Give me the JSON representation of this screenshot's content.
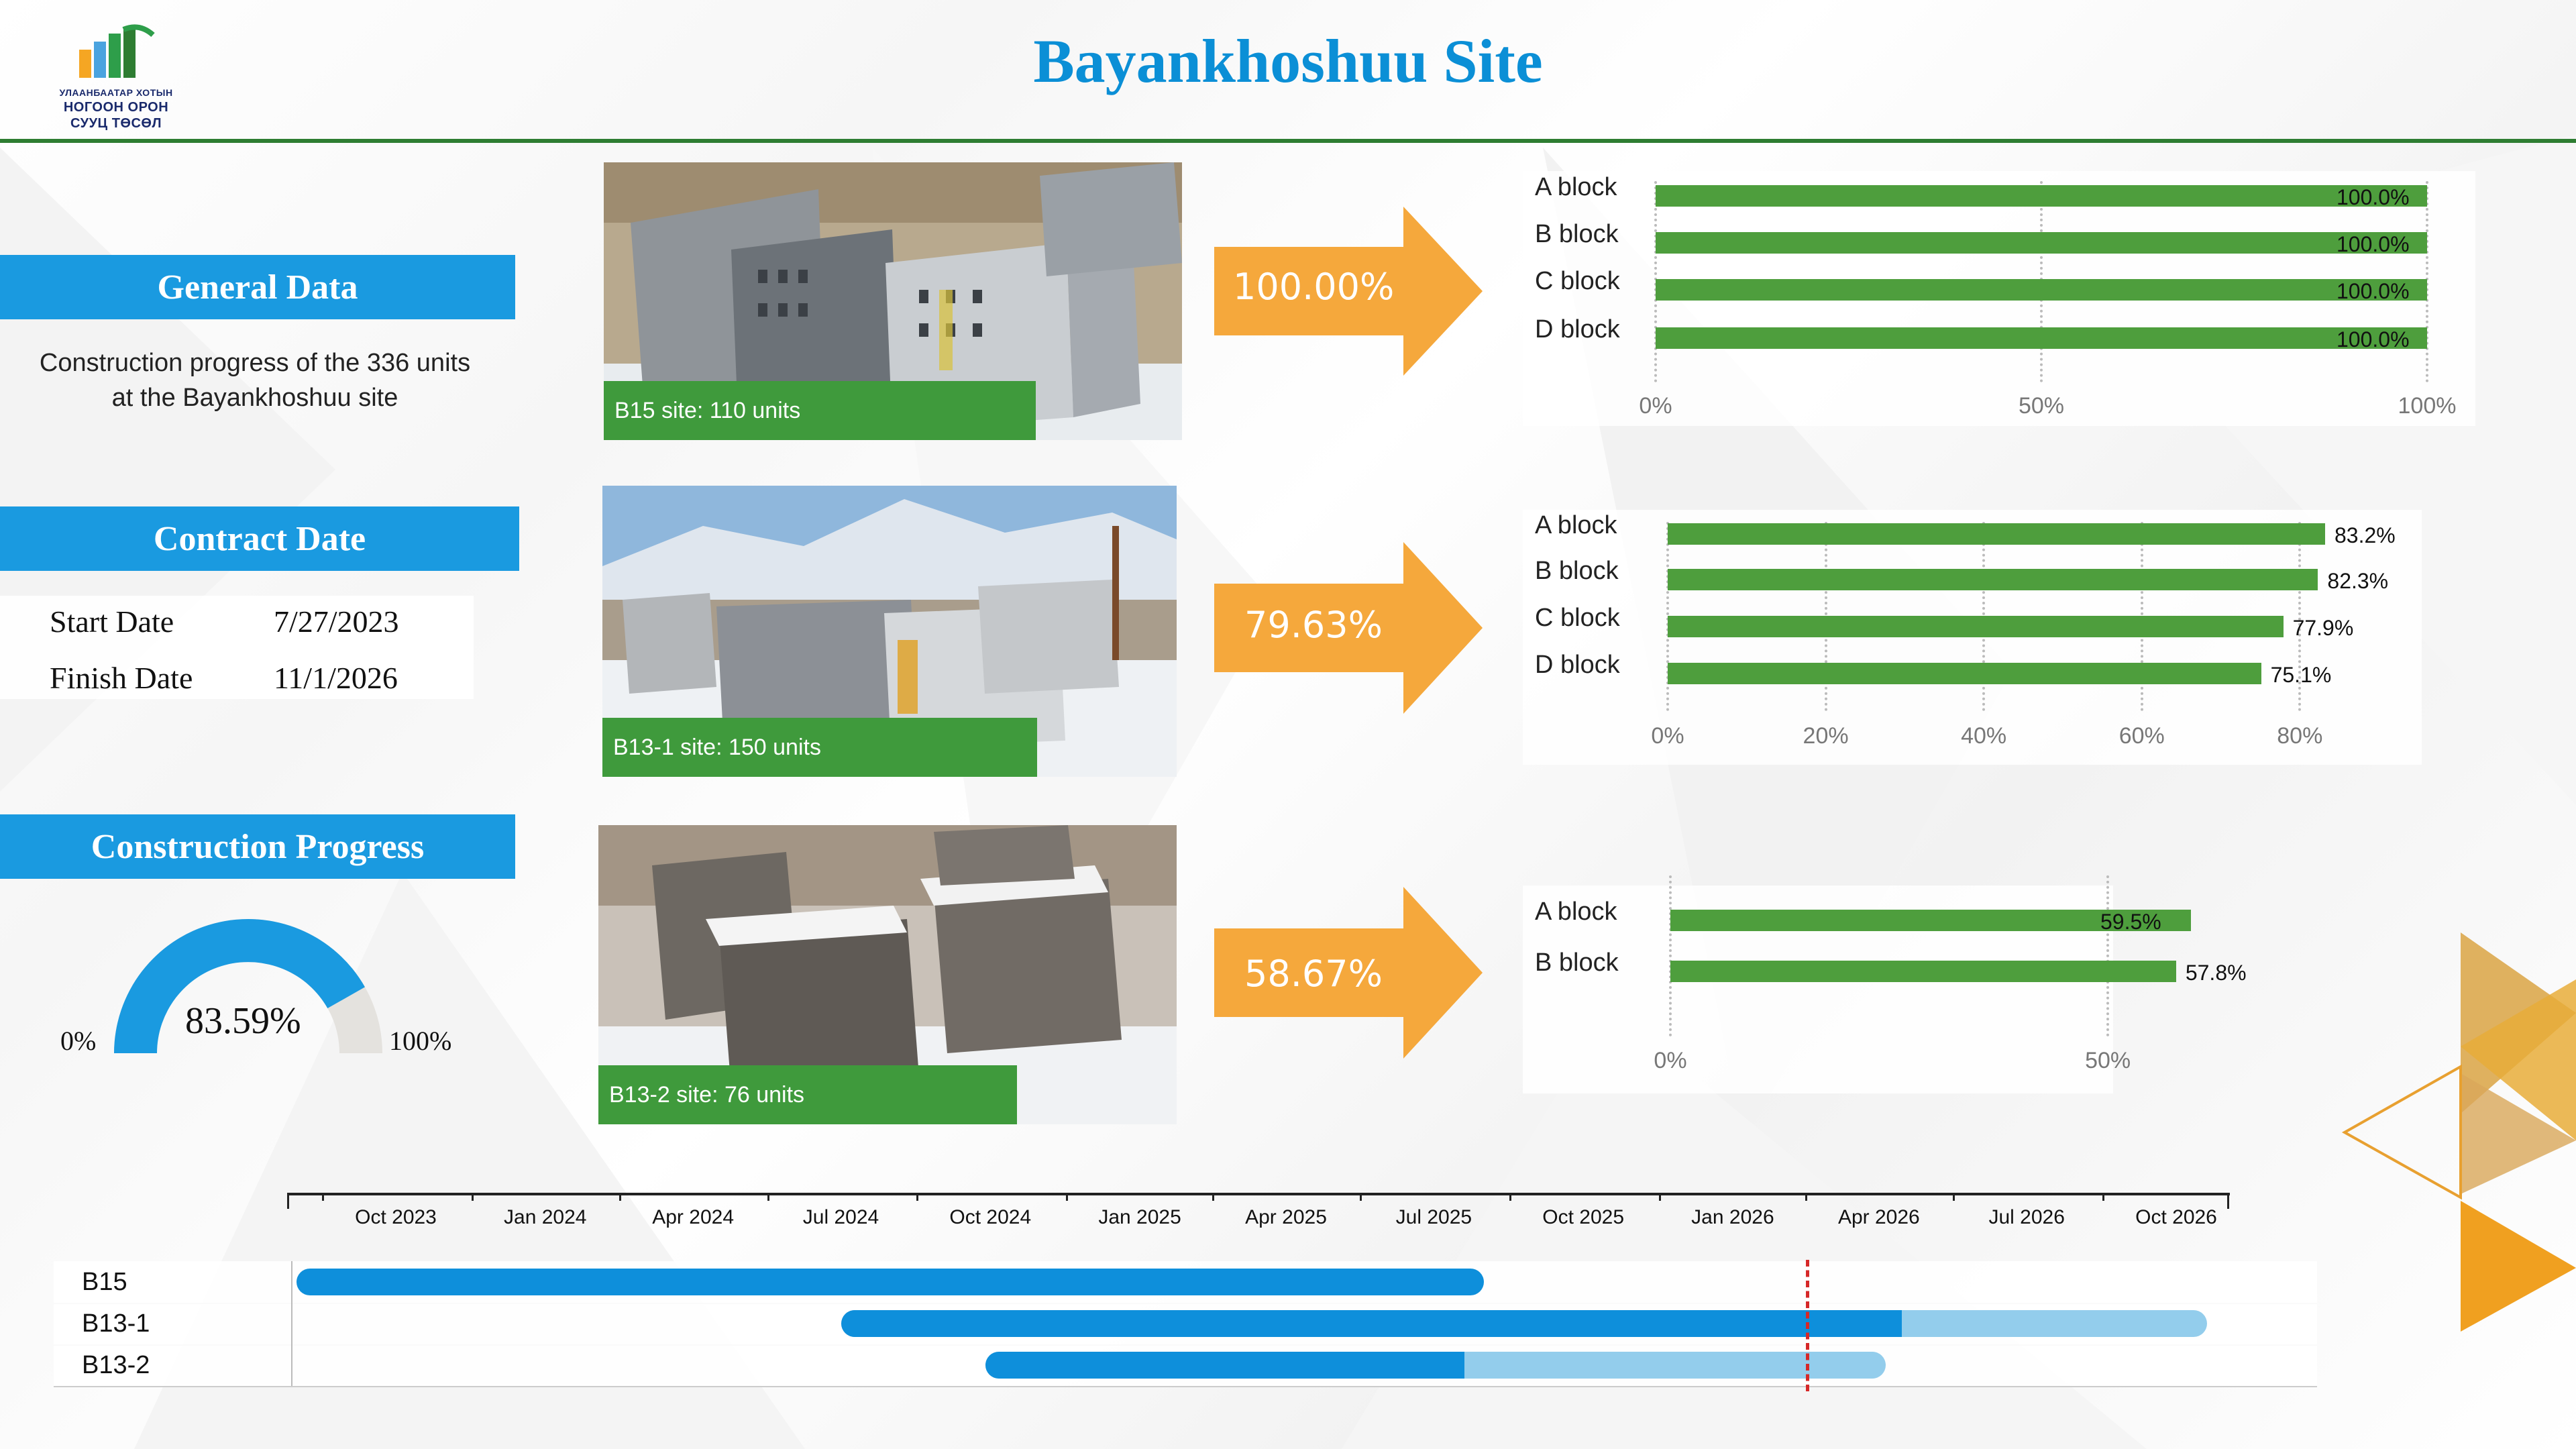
{
  "header": {
    "title": "Bayankhoshuu Site",
    "logo": {
      "line1": "УЛААНБААТАР ХОТЫН",
      "line2": "НОГООН ОРОН",
      "line3": "СУУЦ ТӨСӨЛ"
    }
  },
  "general": {
    "heading": "General Data",
    "description_line1": "Construction progress of the 336 units",
    "description_line2": "at the Bayankhoshuu site"
  },
  "contract": {
    "heading": "Contract Date",
    "start_label": "Start Date",
    "start_value": "7/27/2023",
    "finish_label": "Finish Date",
    "finish_value": "11/1/2026"
  },
  "progress": {
    "heading": "Construction Progress",
    "value_text": "83.59%",
    "value": 83.59,
    "min_label": "0%",
    "max_label": "100%",
    "colors": {
      "fill": "#1a9ae0",
      "track": "#e4e2de"
    }
  },
  "sites": [
    {
      "caption": "B15 site: 110 units",
      "percent_text": "100.00%",
      "chart": {
        "type": "bar",
        "categories": [
          "A block",
          "B block",
          "C block",
          "D block"
        ],
        "values": [
          100.0,
          100.0,
          100.0,
          100.0
        ],
        "value_labels": [
          "100.0%",
          "100.0%",
          "100.0%",
          "100.0%"
        ],
        "ticks": [
          "0%",
          "50%",
          "100%"
        ],
        "xlim": [
          0,
          100
        ]
      }
    },
    {
      "caption": "B13-1 site: 150 units",
      "percent_text": "79.63%",
      "chart": {
        "type": "bar",
        "categories": [
          "A block",
          "B block",
          "C block",
          "D block"
        ],
        "values": [
          83.2,
          82.3,
          77.9,
          75.1
        ],
        "value_labels": [
          "83.2%",
          "82.3%",
          "77.9%",
          "75.1%"
        ],
        "ticks": [
          "0%",
          "20%",
          "40%",
          "60%",
          "80%"
        ],
        "xlim": [
          0,
          83.2
        ]
      }
    },
    {
      "caption": "B13-2 site: 76 units",
      "percent_text": "58.67%",
      "chart": {
        "type": "bar",
        "categories": [
          "A block",
          "B block"
        ],
        "values": [
          59.5,
          57.8
        ],
        "value_labels": [
          "59.5%",
          "57.8%"
        ],
        "ticks": [
          "0%",
          "50%"
        ],
        "xlim": [
          0,
          59.5
        ]
      }
    }
  ],
  "gantt": {
    "ticks": [
      "Oct 2023",
      "Jan 2024",
      "Apr 2024",
      "Jul 2024",
      "Oct 2024",
      "Jan 2025",
      "Apr 2025",
      "Jul 2025",
      "Oct 2025",
      "Jan 2026",
      "Apr 2026",
      "Jul 2026",
      "Oct 2026"
    ],
    "today_marker": "2026-02-15",
    "rows": [
      {
        "label": "B15",
        "start": "2023-08-01",
        "progress_end": "2025-08-01",
        "end": "2025-08-01"
      },
      {
        "label": "B13-1",
        "start": "2024-07-01",
        "progress_end": "2026-04-15",
        "end": "2026-10-20"
      },
      {
        "label": "B13-2",
        "start": "2024-09-28",
        "progress_end": "2025-07-20",
        "end": "2026-04-05"
      }
    ],
    "colors": {
      "done": "#0e8fdb",
      "remaining": "#93cdec",
      "today": "#d62828"
    }
  },
  "colors": {
    "accent": "#1a9ae0",
    "title": "#0b8fd6",
    "bar": "#4e9e3d",
    "arrow": "#f5a83c",
    "header_line": "#2e7d32"
  }
}
